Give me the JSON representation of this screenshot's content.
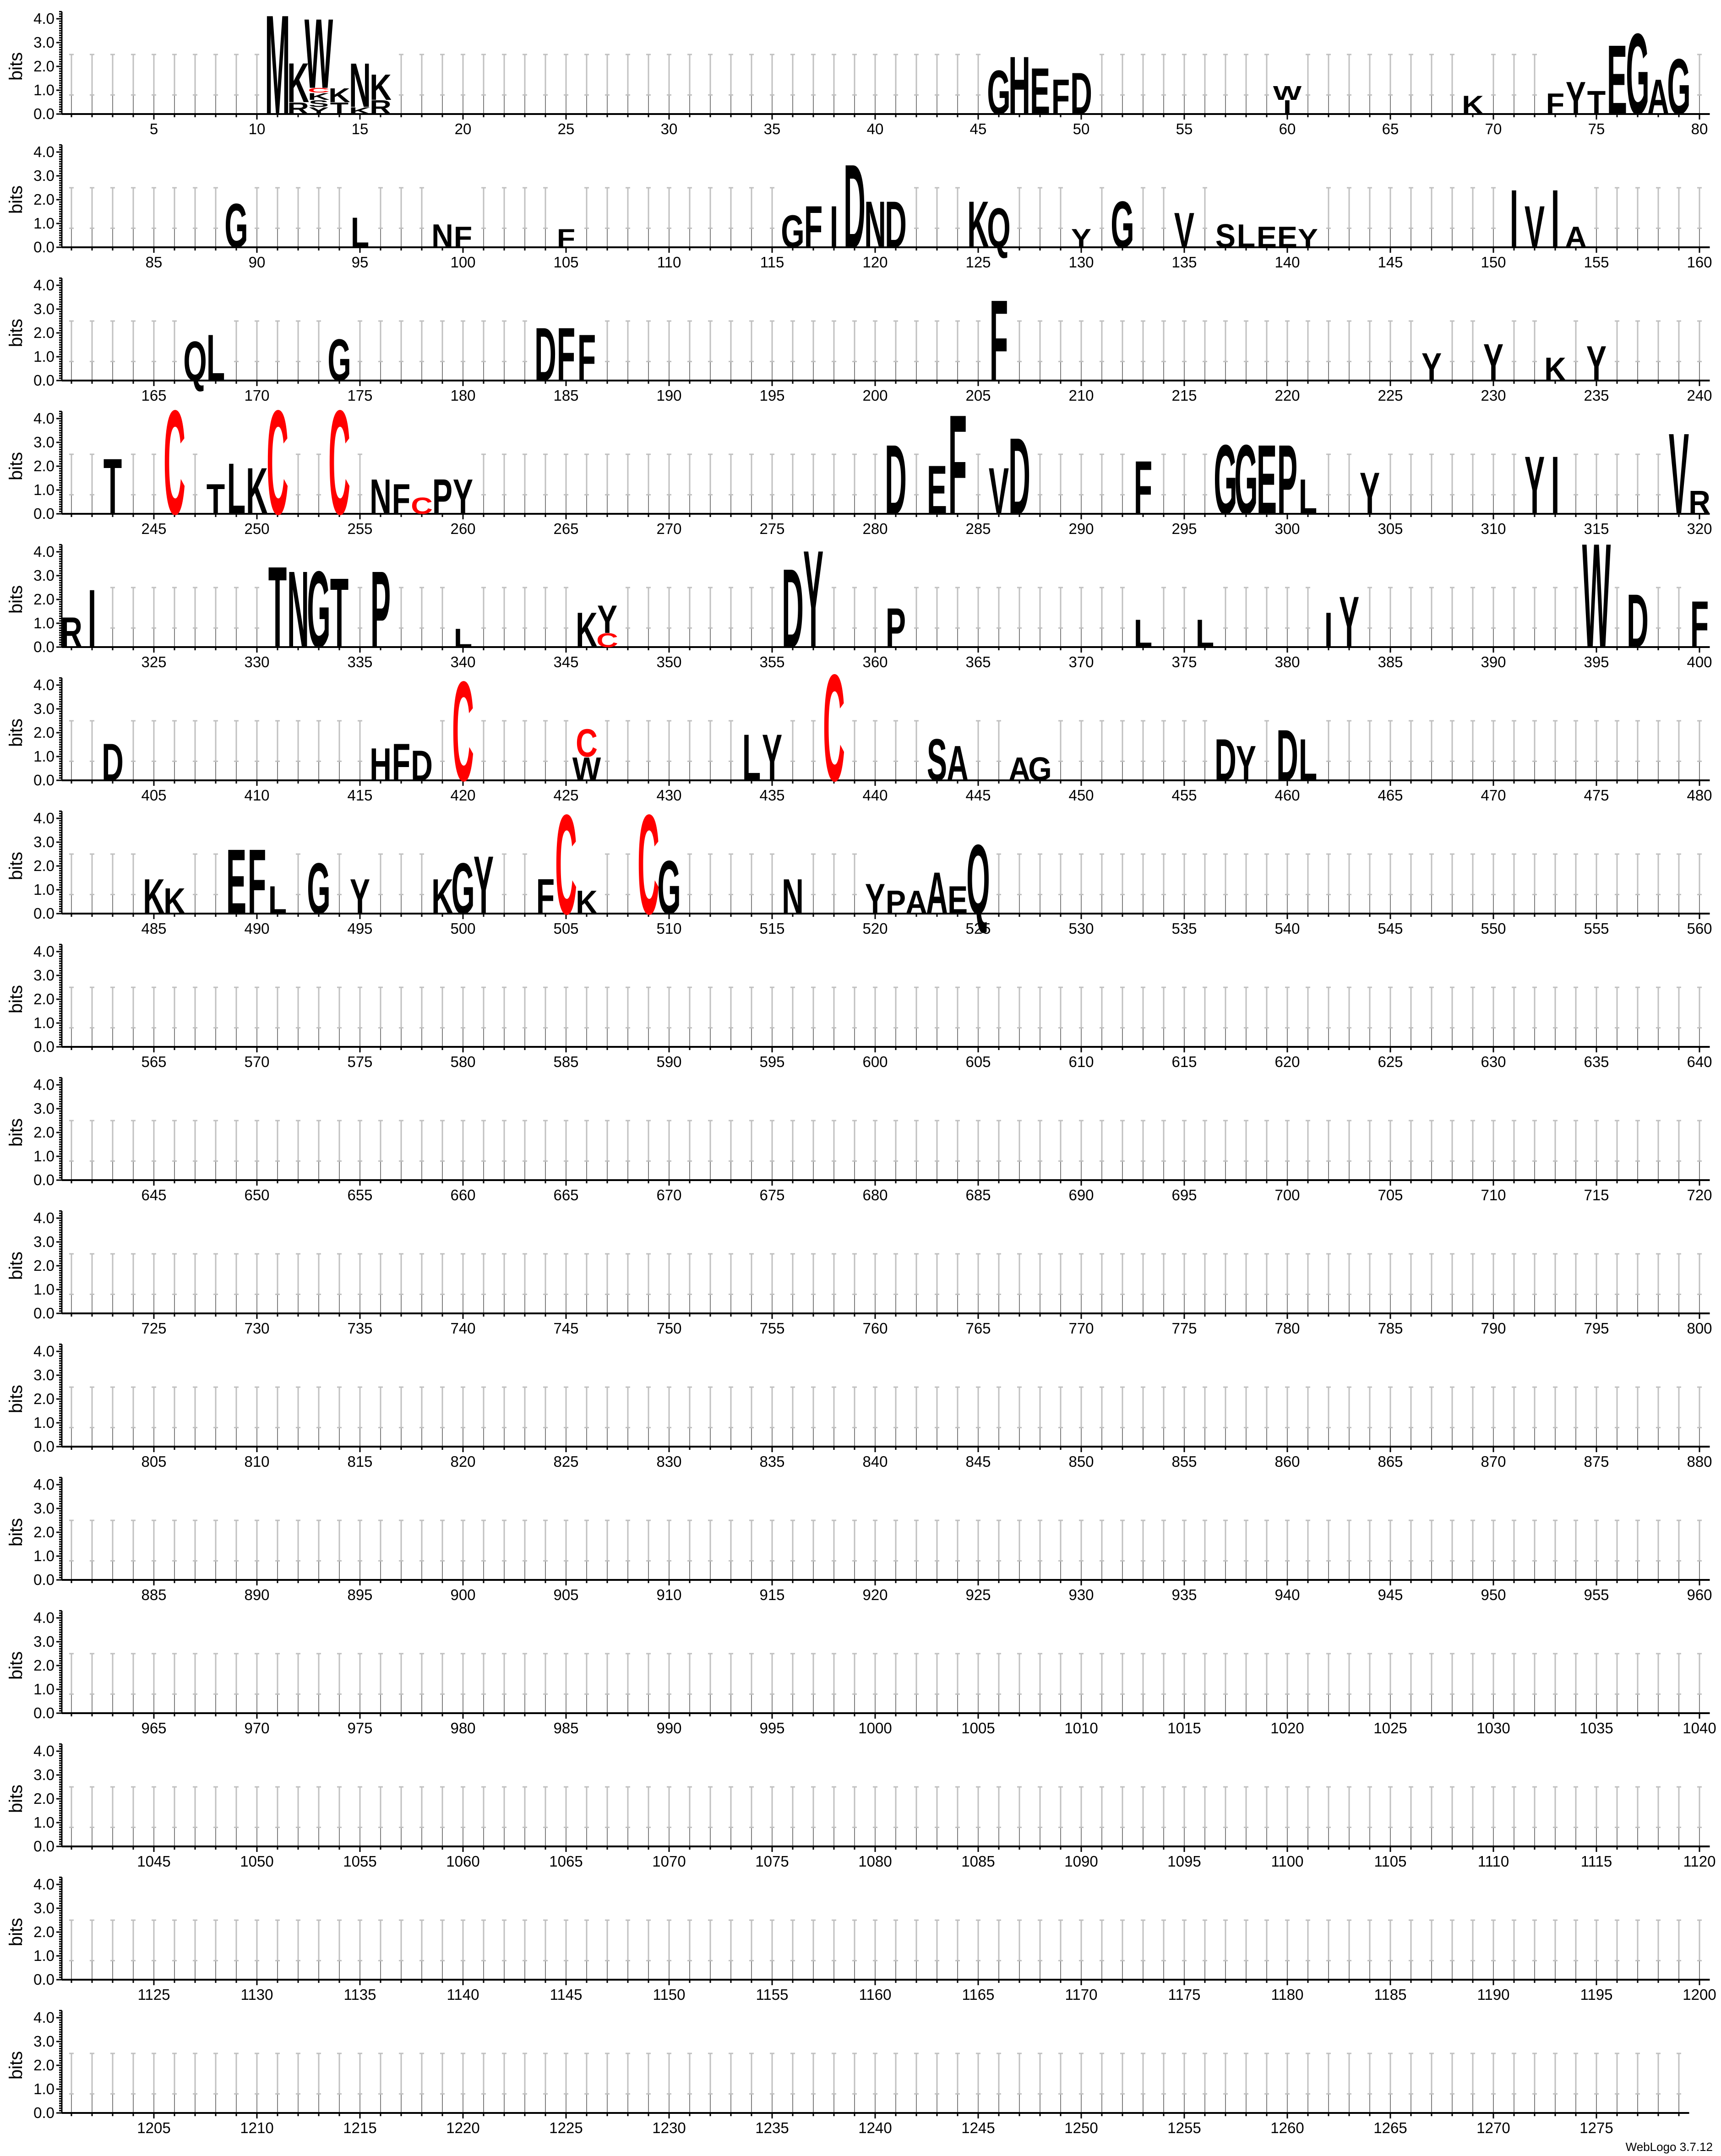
{
  "chart_data": {
    "type": "sequence_logo",
    "ylabel": "bits",
    "ylim": [
      0,
      4.3
    ],
    "yticks": [
      "0.0",
      "1.0",
      "2.0",
      "3.0",
      "4.0"
    ],
    "sequence_length": 1279,
    "positions_per_row": 80,
    "x_tick_step": 5,
    "grid": false,
    "colors": {
      "C": "#ff0000",
      "default": "#000000",
      "error_bar": "#c0c0c0"
    },
    "typical_error_bar_bits": [
      0.8,
      2.5
    ],
    "columns": {
      "11": [
        [
          "M",
          4.3
        ]
      ],
      "12": [
        [
          "R",
          0.5
        ],
        [
          "K",
          1.7
        ]
      ],
      "13": [
        [
          "Y",
          0.3
        ],
        [
          "S",
          0.3
        ],
        [
          "K",
          0.3
        ],
        [
          "C",
          0.2
        ],
        [
          "W",
          3.0
        ]
      ],
      "14": [
        [
          "T",
          0.5
        ],
        [
          "K",
          0.6
        ]
      ],
      "15": [
        [
          "K",
          0.3
        ],
        [
          "N",
          1.9
        ]
      ],
      "16": [
        [
          "R",
          0.6
        ],
        [
          "K",
          1.1
        ]
      ],
      "46": [
        [
          "G",
          1.9
        ]
      ],
      "47": [
        [
          "H",
          2.5
        ]
      ],
      "48": [
        [
          "E",
          2.0
        ]
      ],
      "49": [
        [
          "F",
          1.5
        ]
      ],
      "50": [
        [
          "D",
          1.8
        ]
      ],
      "60": [
        [
          "I",
          0.6
        ],
        [
          "W",
          0.6
        ]
      ],
      "69": [
        [
          "K",
          0.8
        ]
      ],
      "73": [
        [
          "F",
          0.9
        ]
      ],
      "74": [
        [
          "Y",
          1.4
        ]
      ],
      "75": [
        [
          "T",
          1.0
        ]
      ],
      "76": [
        [
          "E",
          3.0
        ]
      ],
      "77": [
        [
          "G",
          3.5
        ]
      ],
      "78": [
        [
          "A",
          1.5
        ]
      ],
      "79": [
        [
          "G",
          2.4
        ]
      ],
      "89": [
        [
          "G",
          1.9
        ]
      ],
      "95": [
        [
          "L",
          1.3
        ]
      ],
      "99": [
        [
          "N",
          1.0
        ]
      ],
      "100": [
        [
          "F",
          0.9
        ]
      ],
      "105": [
        [
          "F",
          0.8
        ]
      ],
      "116": [
        [
          "G",
          1.4
        ]
      ],
      "117": [
        [
          "F",
          1.8
        ]
      ],
      "118": [
        [
          "I",
          1.8
        ]
      ],
      "119": [
        [
          "D",
          3.6
        ]
      ],
      "120": [
        [
          "N",
          2.0
        ]
      ],
      "121": [
        [
          "D",
          2.0
        ]
      ],
      "125": [
        [
          "K",
          2.0
        ]
      ],
      "126": [
        [
          "Q",
          1.7
        ]
      ],
      "130": [
        [
          "Y",
          0.8
        ]
      ],
      "132": [
        [
          "G",
          2.0
        ]
      ],
      "135": [
        [
          "V",
          1.5
        ]
      ],
      "137": [
        [
          "S",
          1.0
        ]
      ],
      "138": [
        [
          "L",
          1.0
        ]
      ],
      "139": [
        [
          "E",
          0.9
        ]
      ],
      "140": [
        [
          "E",
          0.9
        ]
      ],
      "141": [
        [
          "Y",
          0.8
        ]
      ],
      "151": [
        [
          "I",
          2.5
        ]
      ],
      "152": [
        [
          "V",
          1.8
        ]
      ],
      "153": [
        [
          "I",
          2.5
        ]
      ],
      "154": [
        [
          "A",
          0.9
        ]
      ],
      "167": [
        [
          "Q",
          1.7
        ]
      ],
      "168": [
        [
          "L",
          2.0
        ]
      ],
      "174": [
        [
          "G",
          1.8
        ]
      ],
      "184": [
        [
          "D",
          2.3
        ]
      ],
      "185": [
        [
          "F",
          2.3
        ]
      ],
      "186": [
        [
          "F",
          2.0
        ]
      ],
      "206": [
        [
          "F",
          3.5
        ]
      ],
      "227": [
        [
          "Y",
          1.2
        ]
      ],
      "230": [
        [
          "Y",
          1.6
        ]
      ],
      "233": [
        [
          "K",
          1.0
        ]
      ],
      "235": [
        [
          "Y",
          1.5
        ]
      ],
      "243": [
        [
          "T",
          2.4
        ]
      ],
      "246": [
        [
          "C",
          4.5
        ]
      ],
      "248": [
        [
          "T",
          1.3
        ]
      ],
      "249": [
        [
          "L",
          2.2
        ]
      ],
      "250": [
        [
          "K",
          2.0
        ]
      ],
      "251": [
        [
          "C",
          4.5
        ]
      ],
      "254": [
        [
          "C",
          4.5
        ]
      ],
      "256": [
        [
          "N",
          1.5
        ]
      ],
      "257": [
        [
          "F",
          1.3
        ]
      ],
      "258": [
        [
          "C",
          0.7
        ]
      ],
      "259": [
        [
          "P",
          1.5
        ]
      ],
      "260": [
        [
          "Y",
          1.5
        ]
      ],
      "281": [
        [
          "D",
          3.0
        ]
      ],
      "283": [
        [
          "E",
          2.1
        ]
      ],
      "284": [
        [
          "F",
          4.3
        ]
      ],
      "286": [
        [
          "V",
          2.0
        ]
      ],
      "287": [
        [
          "D",
          3.3
        ]
      ],
      "293": [
        [
          "F",
          2.3
        ]
      ],
      "297": [
        [
          "G",
          3.0
        ]
      ],
      "298": [
        [
          "G",
          3.0
        ]
      ],
      "299": [
        [
          "E",
          3.0
        ]
      ],
      "300": [
        [
          "P",
          3.0
        ]
      ],
      "301": [
        [
          "L",
          1.5
        ]
      ],
      "304": [
        [
          "Y",
          1.8
        ]
      ],
      "312": [
        [
          "Y",
          2.5
        ]
      ],
      "313": [
        [
          "I",
          2.5
        ]
      ],
      "319": [
        [
          "V",
          3.5
        ]
      ],
      "320": [
        [
          "R",
          1.0
        ]
      ],
      "321": [
        [
          "R",
          1.3
        ]
      ],
      "322": [
        [
          "I",
          2.5
        ]
      ],
      "331": [
        [
          "T",
          3.5
        ]
      ],
      "332": [
        [
          "N",
          3.3
        ]
      ],
      "333": [
        [
          "G",
          3.3
        ]
      ],
      "334": [
        [
          "T",
          3.0
        ]
      ],
      "336": [
        [
          "P",
          3.3
        ]
      ],
      "340": [
        [
          "L",
          0.8
        ]
      ],
      "346": [
        [
          "K",
          1.5
        ]
      ],
      "347": [
        [
          "C",
          0.6
        ],
        [
          "Y",
          1.2
        ]
      ],
      "356": [
        [
          "D",
          3.4
        ]
      ],
      "357": [
        [
          "Y",
          4.2
        ]
      ],
      "361": [
        [
          "P",
          1.7
        ]
      ],
      "373": [
        [
          "L",
          1.2
        ]
      ],
      "376": [
        [
          "L",
          1.2
        ]
      ],
      "382": [
        [
          "I",
          1.5
        ]
      ],
      "383": [
        [
          "Y",
          2.2
        ]
      ],
      "395": [
        [
          "W",
          4.5
        ]
      ],
      "397": [
        [
          "D",
          2.3
        ]
      ],
      "400": [
        [
          "F",
          2.0
        ]
      ],
      "403": [
        [
          "D",
          1.6
        ]
      ],
      "416": [
        [
          "H",
          1.4
        ]
      ],
      "417": [
        [
          "F",
          1.6
        ]
      ],
      "418": [
        [
          "D",
          1.3
        ]
      ],
      "420": [
        [
          "C",
          4.3
        ]
      ],
      "426": [
        [
          "W",
          1.0
        ],
        [
          "C",
          1.2
        ]
      ],
      "434": [
        [
          "L",
          2.0
        ]
      ],
      "435": [
        [
          "Y",
          2.0
        ]
      ],
      "438": [
        [
          "C",
          4.6
        ]
      ],
      "443": [
        [
          "S",
          1.8
        ]
      ],
      "444": [
        [
          "A",
          1.5
        ]
      ],
      "447": [
        [
          "A",
          1.0
        ]
      ],
      "448": [
        [
          "G",
          1.0
        ]
      ],
      "457": [
        [
          "D",
          1.8
        ]
      ],
      "458": [
        [
          "Y",
          1.5
        ]
      ],
      "460": [
        [
          "D",
          2.2
        ]
      ],
      "461": [
        [
          "L",
          1.8
        ]
      ],
      "485": [
        [
          "K",
          1.5
        ]
      ],
      "486": [
        [
          "K",
          1.1
        ]
      ],
      "489": [
        [
          "E",
          2.8
        ]
      ],
      "490": [
        [
          "F",
          2.8
        ]
      ],
      "491": [
        [
          "L",
          1.2
        ]
      ],
      "493": [
        [
          "G",
          2.2
        ]
      ],
      "495": [
        [
          "Y",
          1.5
        ]
      ],
      "499": [
        [
          "K",
          1.5
        ]
      ],
      "500": [
        [
          "G",
          2.2
        ]
      ],
      "501": [
        [
          "Y",
          2.5
        ]
      ],
      "504": [
        [
          "F",
          1.5
        ]
      ],
      "505": [
        [
          "C",
          4.3
        ]
      ],
      "506": [
        [
          "K",
          1.0
        ]
      ],
      "509": [
        [
          "C",
          4.3
        ]
      ],
      "510": [
        [
          "G",
          2.3
        ]
      ],
      "516": [
        [
          "N",
          1.5
        ]
      ],
      "520": [
        [
          "Y",
          1.3
        ]
      ],
      "521": [
        [
          "P",
          1.0
        ]
      ],
      "522": [
        [
          "A",
          1.0
        ]
      ],
      "523": [
        [
          "A",
          1.8
        ]
      ],
      "524": [
        [
          "E",
          1.2
        ]
      ],
      "525": [
        [
          "Q",
          3.0
        ]
      ]
    }
  },
  "footer": "WebLogo 3.7.12"
}
